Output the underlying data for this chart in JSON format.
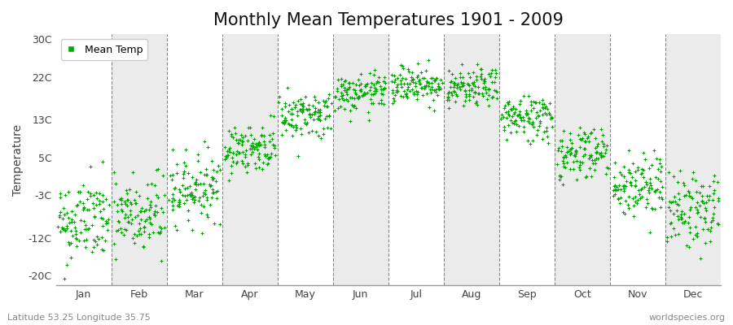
{
  "title": "Monthly Mean Temperatures 1901 - 2009",
  "ylabel": "Temperature",
  "bottom_left": "Latitude 53.25 Longitude 35.75",
  "bottom_right": "worldspecies.org",
  "legend_label": "Mean Temp",
  "yticks": [
    -20,
    -12,
    -3,
    5,
    13,
    22,
    30
  ],
  "ytick_labels": [
    "-20C",
    "-12C",
    "-3C",
    "5C",
    "13C",
    "22C",
    "30C"
  ],
  "ylim": [
    -22,
    31
  ],
  "months": [
    "Jan",
    "Feb",
    "Mar",
    "Apr",
    "May",
    "Jun",
    "Jul",
    "Aug",
    "Sep",
    "Oct",
    "Nov",
    "Dec"
  ],
  "month_means": [
    -8.5,
    -7.5,
    -1.5,
    7.0,
    14.0,
    18.5,
    20.5,
    19.5,
    13.5,
    6.0,
    -1.0,
    -6.0
  ],
  "month_stds": [
    4.5,
    4.5,
    3.5,
    2.5,
    2.5,
    2.0,
    2.0,
    2.0,
    2.5,
    3.0,
    3.5,
    4.0
  ],
  "n_years": 109,
  "dot_color": "#00AA00",
  "dot_size": 5,
  "background_color": "#FFFFFF",
  "band_colors": [
    "#FFFFFF",
    "#EBEBEB"
  ],
  "dashed_line_color": "#888888",
  "title_fontsize": 15,
  "label_fontsize": 10,
  "tick_fontsize": 9,
  "seed": 42
}
